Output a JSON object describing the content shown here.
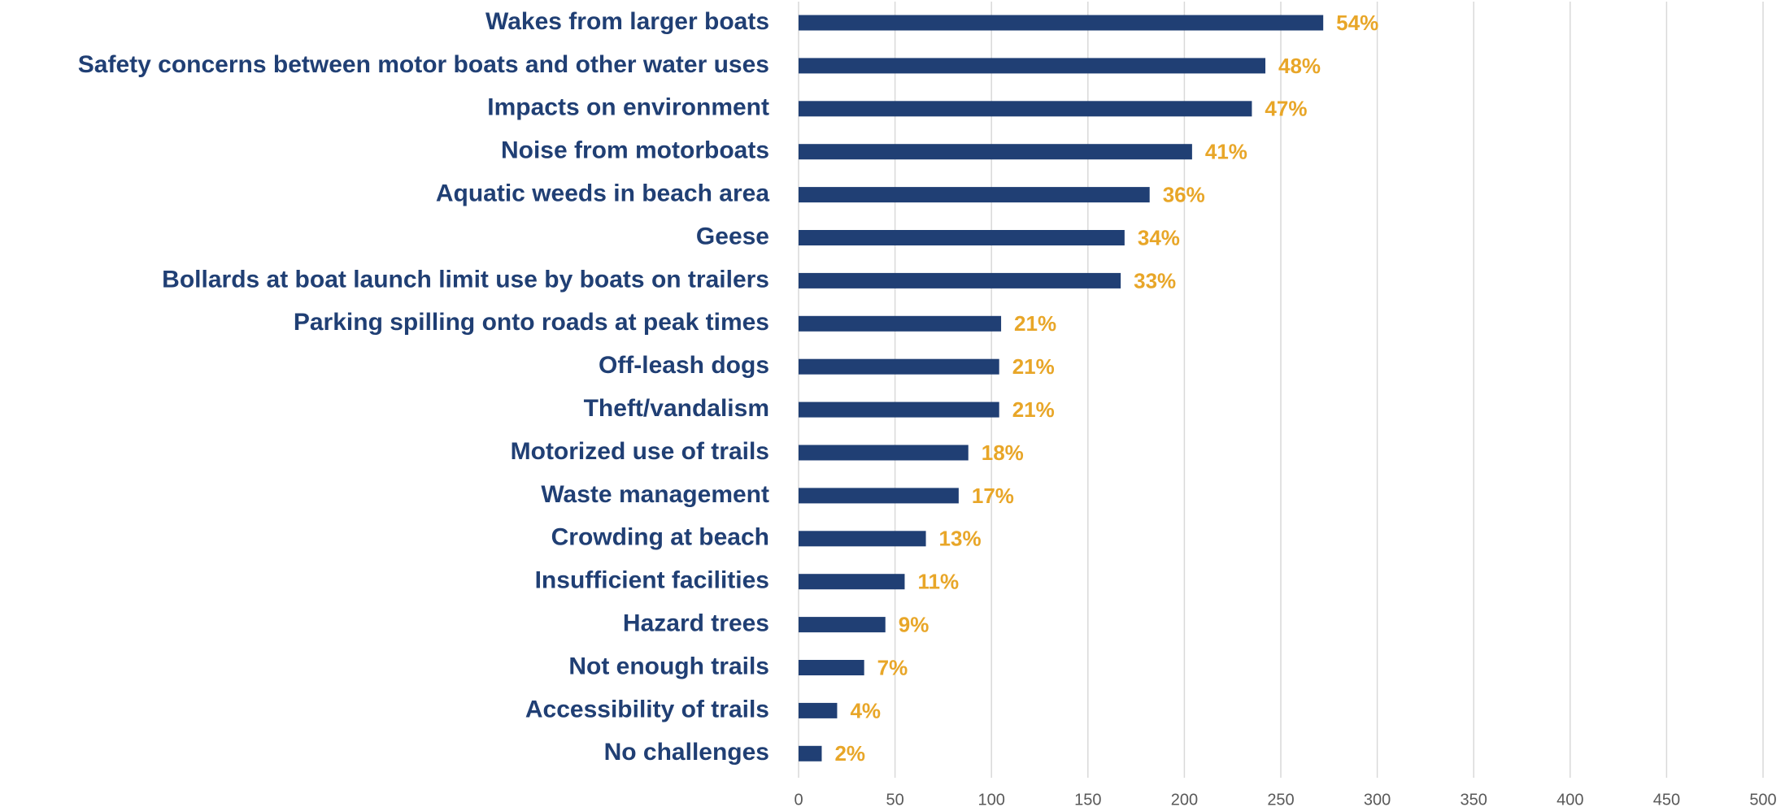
{
  "chart_data": {
    "type": "barh",
    "categories": [
      "Wakes from larger boats",
      "Safety concerns between motor boats and other water uses",
      "Impacts on environment",
      "Noise from motorboats",
      "Aquatic weeds in beach area",
      "Geese",
      "Bollards at boat launch limit use by boats on trailers",
      "Parking spilling onto roads at peak times",
      "Off-leash dogs",
      "Theft/vandalism",
      "Motorized use of trails",
      "Waste management",
      "Crowding at beach",
      "Insufficient facilities",
      "Hazard trees",
      "Not enough trails",
      "Accessibility of trails",
      "No challenges"
    ],
    "values": [
      272,
      242,
      235,
      204,
      182,
      169,
      167,
      105,
      104,
      104,
      88,
      83,
      66,
      55,
      45,
      34,
      20,
      12
    ],
    "value_labels": [
      "54%",
      "48%",
      "47%",
      "41%",
      "36%",
      "34%",
      "33%",
      "21%",
      "21%",
      "21%",
      "18%",
      "17%",
      "13%",
      "11%",
      "9%",
      "7%",
      "4%",
      "2%"
    ],
    "color": "#203f74",
    "label_color": "#e8a628",
    "xlim": [
      0,
      500
    ],
    "xticks": [
      0,
      50,
      100,
      150,
      200,
      250,
      300,
      350,
      400,
      450,
      500
    ],
    "grid": true
  }
}
